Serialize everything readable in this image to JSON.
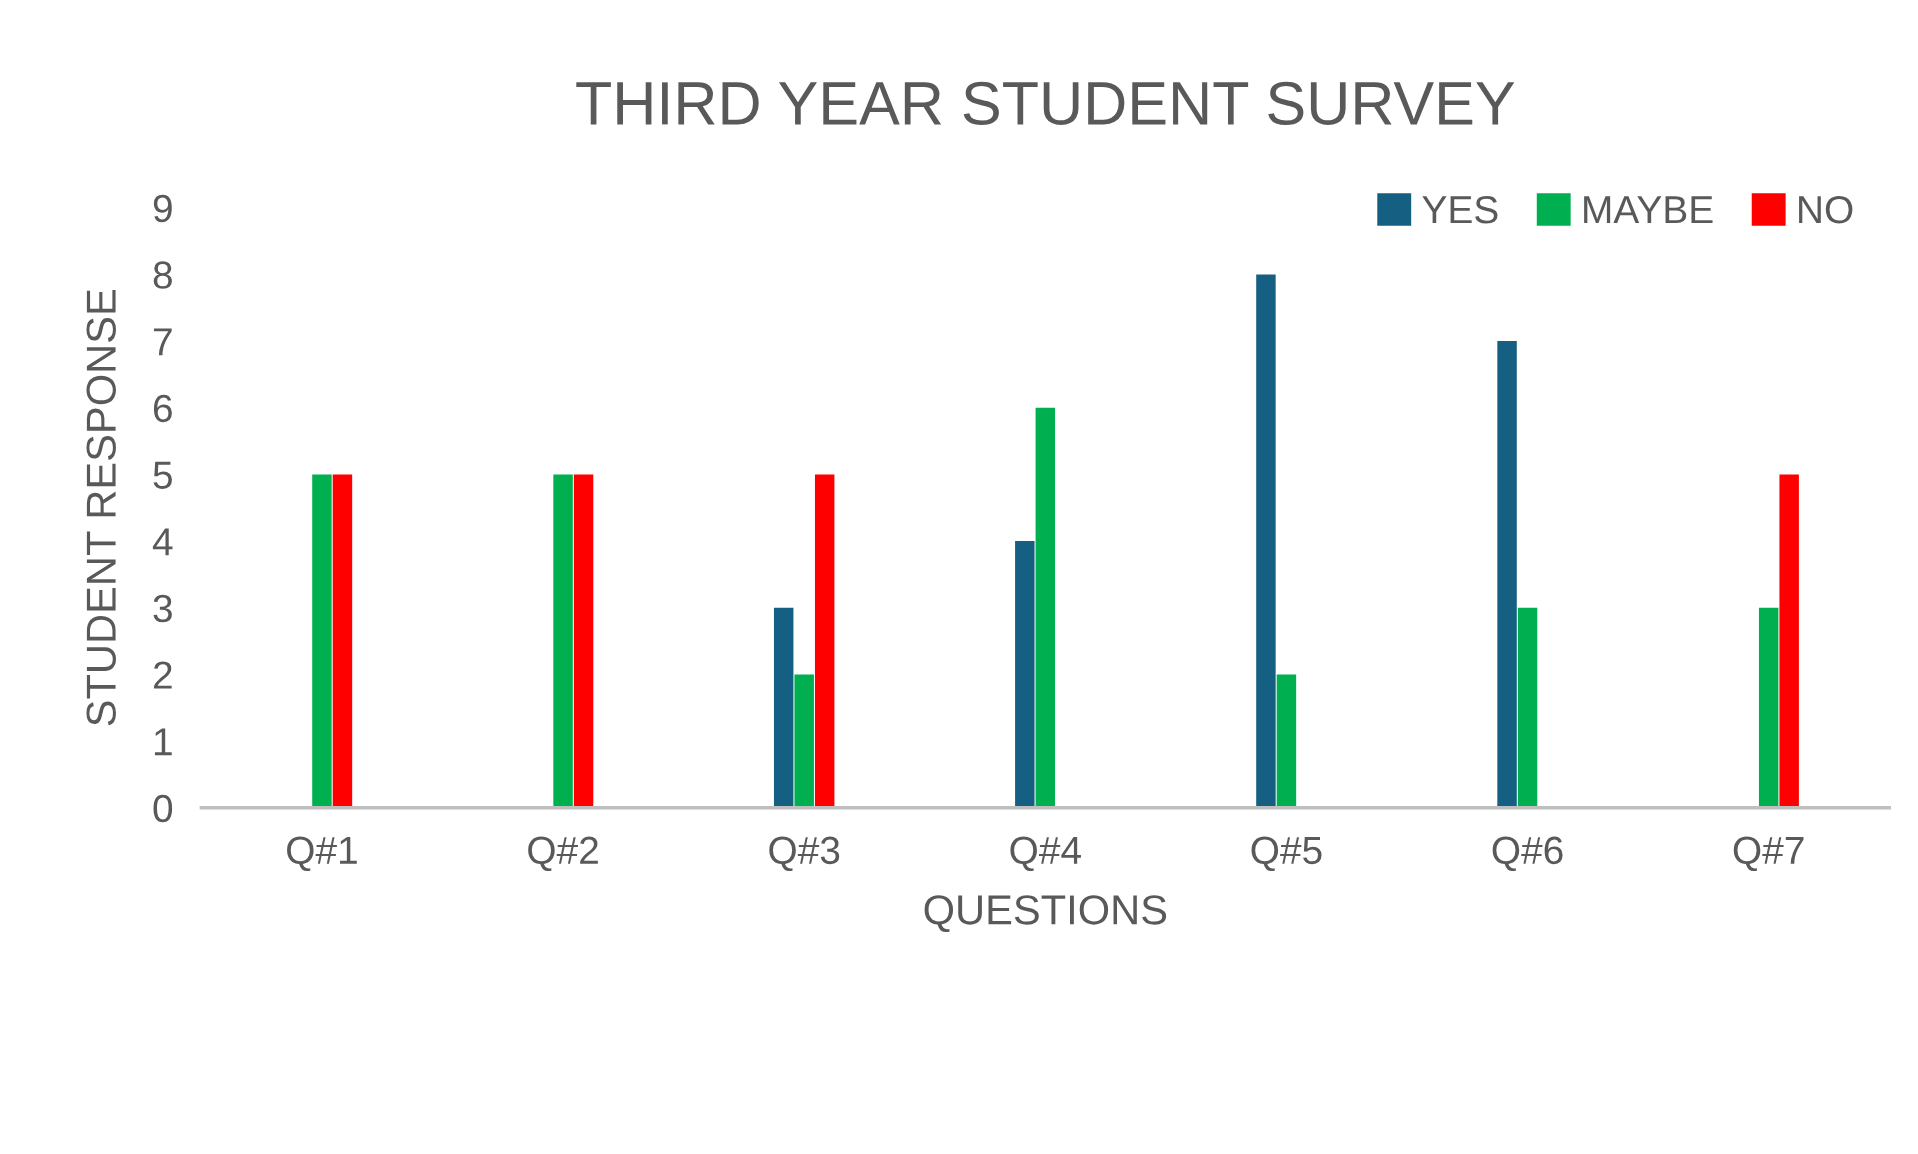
{
  "chart_data": {
    "type": "bar",
    "title": "THIRD YEAR STUDENT SURVEY",
    "xlabel": "QUESTIONS",
    "ylabel": "STUDENT RESPONSE",
    "categories": [
      "Q#1",
      "Q#2",
      "Q#3",
      "Q#4",
      "Q#5",
      "Q#6",
      "Q#7"
    ],
    "series": [
      {
        "name": "YES",
        "color": "#156082",
        "values": [
          null,
          null,
          3,
          4,
          8,
          7,
          null
        ]
      },
      {
        "name": "MAYBE",
        "color": "#00b050",
        "values": [
          5,
          5,
          2,
          6,
          2,
          3,
          3
        ]
      },
      {
        "name": "NO",
        "color": "#ff0000",
        "values": [
          5,
          5,
          5,
          null,
          null,
          null,
          5
        ]
      }
    ],
    "ylim": [
      0,
      9
    ],
    "yticks": [
      0,
      1,
      2,
      3,
      4,
      5,
      6,
      7,
      8,
      9
    ],
    "grid": false,
    "legend": "top right"
  }
}
